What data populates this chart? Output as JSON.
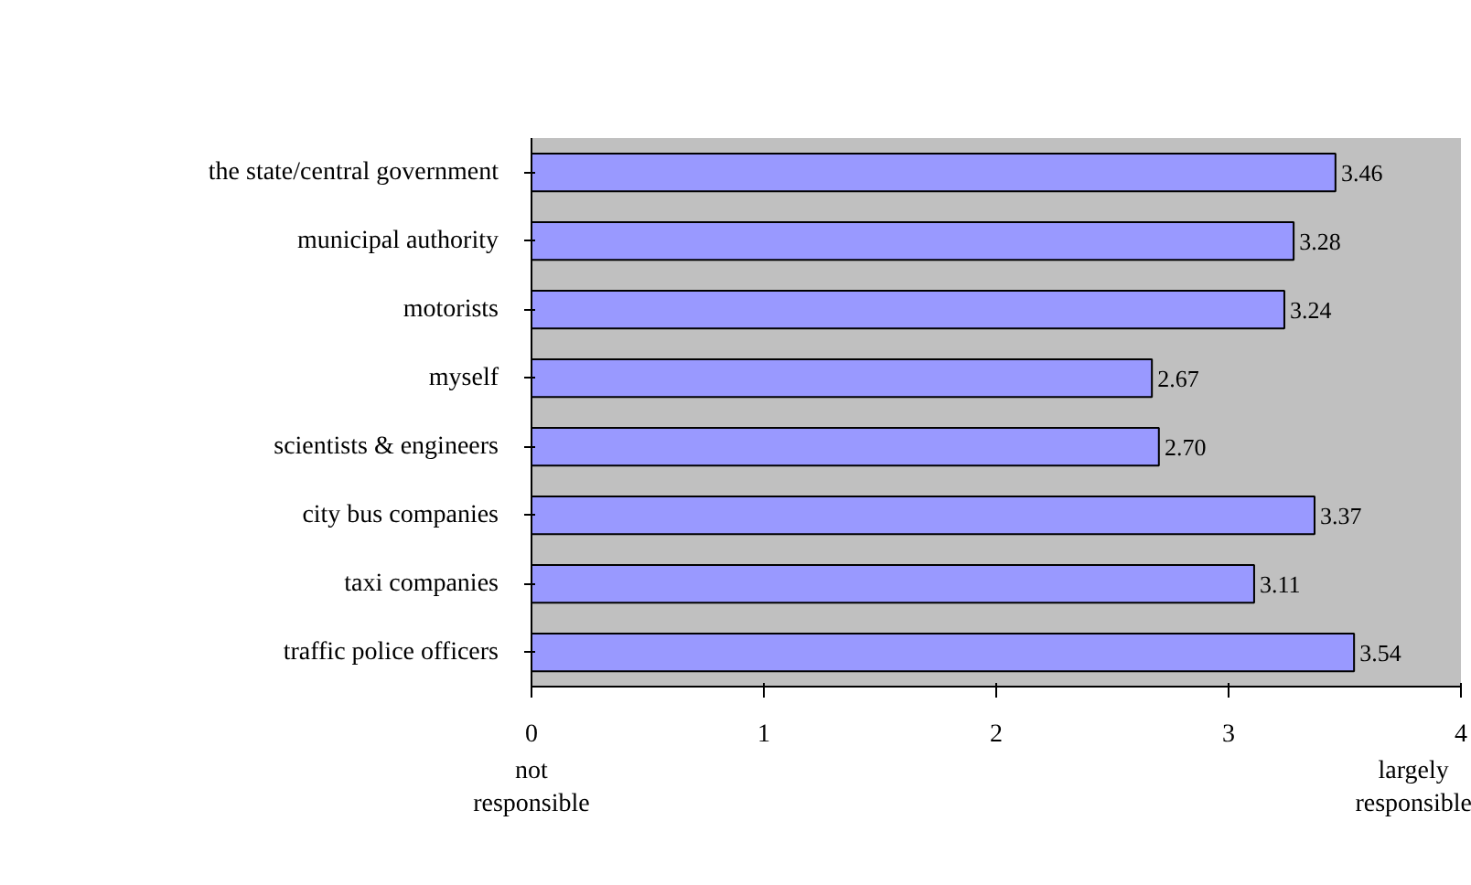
{
  "chart_data": {
    "type": "bar",
    "orientation": "horizontal",
    "categories": [
      "the state/central government",
      "municipal authority",
      "motorists",
      "myself",
      "scientists & engineers",
      "city bus companies",
      "taxi companies",
      "traffic police officers"
    ],
    "values": [
      3.46,
      3.28,
      3.24,
      2.67,
      2.7,
      3.37,
      3.11,
      3.54
    ],
    "value_labels": [
      "3.46",
      "3.28",
      "3.24",
      "2.67",
      "2.70",
      "3.37",
      "3.11",
      "3.54"
    ],
    "color": "#9999ff",
    "xlim": [
      0,
      4
    ],
    "xticks": [
      0,
      1,
      2,
      3,
      4
    ],
    "grid": false,
    "annotations": [
      "not responsible",
      "largely responsible"
    ]
  }
}
